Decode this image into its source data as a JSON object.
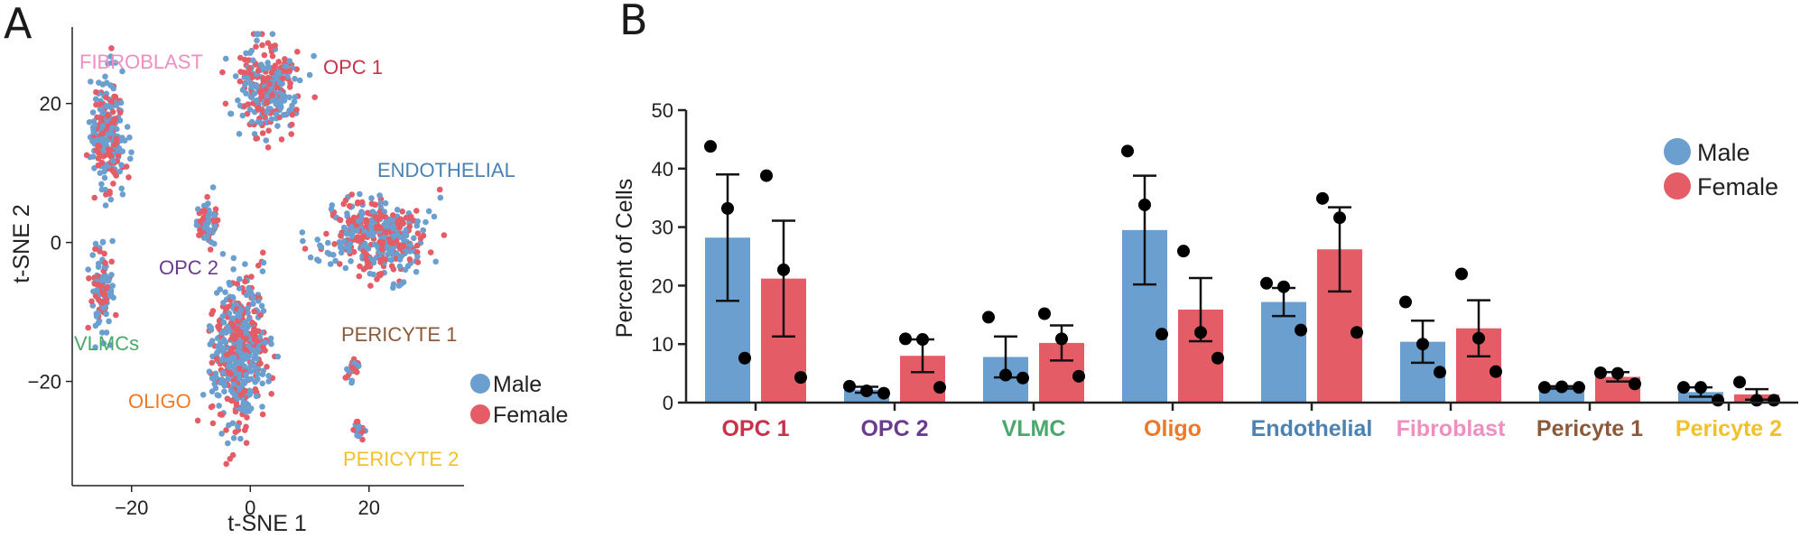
{
  "panel_a": {
    "letter": "A",
    "colors": {
      "male": "#6a9fd0",
      "female": "#e45c66"
    },
    "clusters": [
      {
        "name": "FIBROBLAST",
        "color": "#ee8fc0",
        "center": [
          -24,
          16
        ],
        "spread": [
          2.6,
          7.5
        ],
        "n": 240
      },
      {
        "name": "OPC 1",
        "color": "#c8334b",
        "center": [
          3,
          22
        ],
        "spread": [
          4.5,
          5.5
        ],
        "n": 300
      },
      {
        "name": "ENDOTHELIAL",
        "color": "#4a82b4",
        "center": [
          21,
          1
        ],
        "spread": [
          8,
          5
        ],
        "n": 420
      },
      {
        "name": "OPC 2",
        "color": "#6a3c8f",
        "center": [
          -7,
          3
        ],
        "spread": [
          1.6,
          2.8
        ],
        "n": 70
      },
      {
        "name": "VLMCs",
        "color": "#4aa86c",
        "center": [
          -25,
          -7
        ],
        "spread": [
          1.8,
          5.5
        ],
        "n": 110
      },
      {
        "name": "OLIGO",
        "color": "#ea7a2a",
        "center": [
          -2,
          -16
        ],
        "spread": [
          4.2,
          9.5
        ],
        "n": 520
      },
      {
        "name": "PERICYTE 1",
        "color": "#8a5a3a",
        "center": [
          17.5,
          -18
        ],
        "spread": [
          1.2,
          1.5
        ],
        "n": 30
      },
      {
        "name": "PERICYTE 2",
        "color": "#f2c02a",
        "center": [
          18.5,
          -27
        ],
        "spread": [
          0.9,
          1.4
        ],
        "n": 22
      }
    ],
    "legend": {
      "male": "Male",
      "female": "Female"
    }
  },
  "chart_data": [
    {
      "type": "scatter",
      "title": "",
      "xlabel": "t-SNE 1",
      "ylabel": "t-SNE 2",
      "xlim": [
        -30,
        36
      ],
      "ylim": [
        -35,
        31
      ],
      "xticks": [
        -20,
        0,
        20
      ],
      "yticks": [
        20,
        0,
        -20
      ],
      "xtick_labels": [
        "−20",
        "0",
        "20"
      ],
      "ytick_labels": [
        "20",
        "0",
        "−20"
      ],
      "series": [
        {
          "name": "Male"
        },
        {
          "name": "Female"
        }
      ],
      "note": "Individual cell coordinates not recoverable; clusters generated from approximate centers/spreads"
    },
    {
      "type": "bar",
      "title": "",
      "ylabel": "Percent of Cells",
      "xlabel": "",
      "ylim": [
        0,
        50
      ],
      "yticks": [
        0,
        10,
        20,
        30,
        40,
        50
      ],
      "categories": [
        "OPC 1",
        "OPC 2",
        "VLMC",
        "Oligo",
        "Endothelial",
        "Fibroblast",
        "Pericyte 1",
        "Pericyte 2"
      ],
      "category_colors": [
        "#c8334b",
        "#6a3c8f",
        "#4aa86c",
        "#ea7a2a",
        "#4a82b4",
        "#ee8fc0",
        "#8a5a3a",
        "#f2c02a"
      ],
      "series": [
        {
          "name": "Male",
          "color": "#6a9fd0",
          "values": [
            28.2,
            2.2,
            7.8,
            29.5,
            17.2,
            10.4,
            2.6,
            1.8
          ],
          "sem": [
            10.8,
            0.5,
            3.5,
            9.3,
            2.4,
            3.6,
            0.2,
            0.8
          ],
          "points": [
            [
              43.8,
              33.2,
              7.6
            ],
            [
              2.8,
              2.0,
              1.6
            ],
            [
              14.6,
              4.7,
              4.2
            ],
            [
              43.0,
              33.8,
              11.7
            ],
            [
              20.4,
              19.8,
              12.4
            ],
            [
              17.2,
              10.0,
              5.2
            ],
            [
              2.6,
              2.7,
              2.6
            ],
            [
              2.6,
              2.6,
              0.4
            ]
          ]
        },
        {
          "name": "Female",
          "color": "#e45c66",
          "values": [
            21.2,
            8.0,
            10.2,
            15.9,
            26.2,
            12.7,
            4.4,
            1.4
          ],
          "sem": [
            9.9,
            2.8,
            3.0,
            5.4,
            7.2,
            4.8,
            0.8,
            0.9
          ],
          "points": [
            [
              38.8,
              22.7,
              4.3
            ],
            [
              10.9,
              10.8,
              2.6
            ],
            [
              15.2,
              10.9,
              4.5
            ],
            [
              25.9,
              12.0,
              7.6
            ],
            [
              34.9,
              31.6,
              12.0
            ],
            [
              22.0,
              11.0,
              5.3
            ],
            [
              5.1,
              5.0,
              3.2
            ],
            [
              3.5,
              0.4,
              0.4
            ]
          ]
        }
      ],
      "legend": {
        "position": "top-right",
        "entries": [
          "Male",
          "Female"
        ]
      }
    }
  ],
  "panel_b": {
    "letter": "B"
  }
}
